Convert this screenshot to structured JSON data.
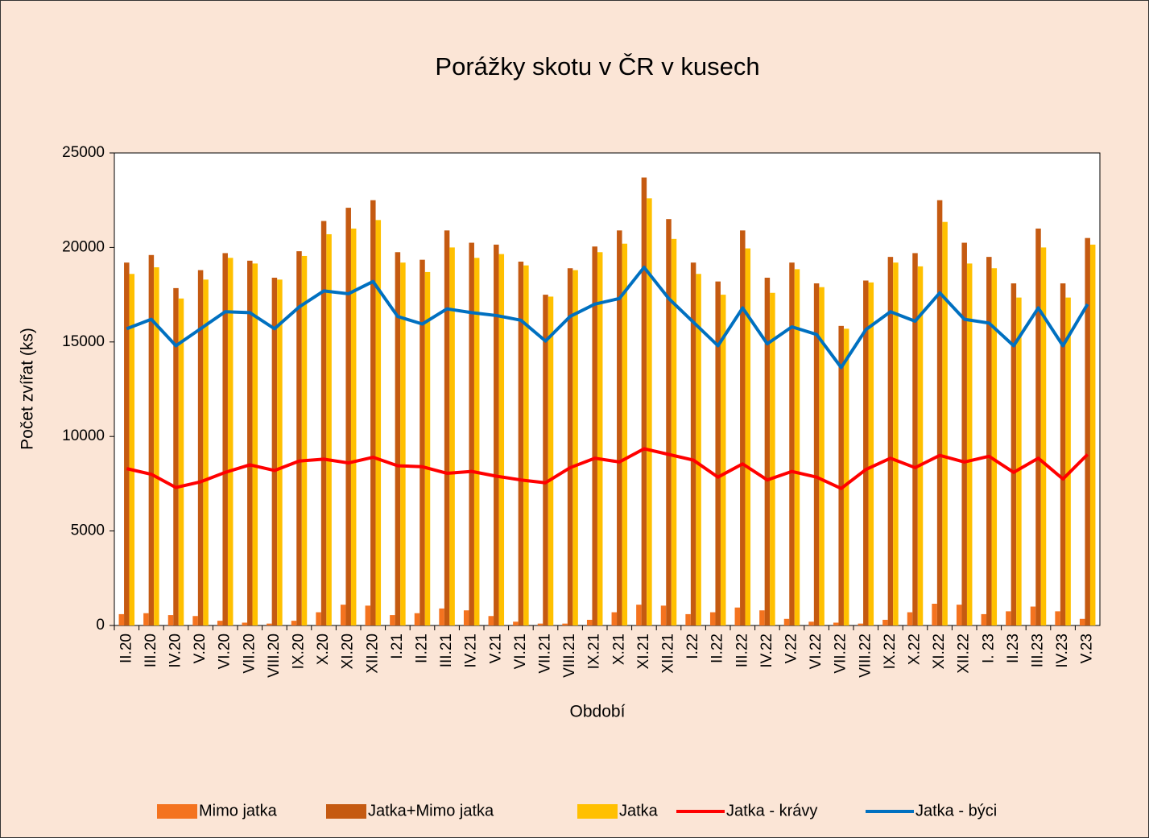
{
  "chart_data": {
    "type": "bar_line",
    "title": "Porážky skotu v ČR v kusech",
    "x_label": "Období",
    "y_label": "Počet zvířat (ks)",
    "categories": [
      "II.20",
      "III.20",
      "IV.20",
      "V.20",
      "VI.20",
      "VII.20",
      "VIII.20",
      "IX.20",
      "X.20",
      "XI.20",
      "XII.20",
      "I.21",
      "II.21",
      "III.21",
      "IV.21",
      "V.21",
      "VI.21",
      "VII.21",
      "VIII.21",
      "IX.21",
      "X.21",
      "XI.21",
      "XII.21",
      "I.22",
      "II.22",
      "III.22",
      "IV.22",
      "V.22",
      "VI.22",
      "VII.22",
      "VIII.22",
      "IX.22",
      "X.22",
      "XI.22",
      "XII.22",
      "I. 23",
      "II.23",
      "III.23",
      "IV.23",
      "V.23"
    ],
    "ylim": [
      0,
      25000
    ],
    "yticks": [
      0,
      5000,
      10000,
      15000,
      20000,
      25000
    ],
    "series": [
      {
        "name": "Mimo jatka",
        "kind": "bar",
        "color": "#f4731f",
        "values": [
          600,
          650,
          550,
          500,
          250,
          150,
          100,
          250,
          700,
          1100,
          1050,
          550,
          650,
          900,
          800,
          500,
          200,
          100,
          100,
          300,
          700,
          1100,
          1050,
          600,
          700,
          950,
          800,
          350,
          200,
          150,
          100,
          300,
          700,
          1150,
          1100,
          600,
          750,
          1000,
          750,
          350
        ]
      },
      {
        "name": "Jatka+Mimo jatka",
        "kind": "bar",
        "color": "#c55a11",
        "values": [
          19200,
          19600,
          17850,
          18800,
          19700,
          19300,
          18400,
          19800,
          21400,
          22100,
          22500,
          19750,
          19350,
          20900,
          20250,
          20150,
          19250,
          17500,
          18900,
          20050,
          20900,
          23700,
          21500,
          19200,
          18200,
          20900,
          18400,
          19200,
          18100,
          15850,
          18250,
          19500,
          19700,
          22500,
          20250,
          19500,
          18100,
          21000,
          18100,
          20500
        ]
      },
      {
        "name": "Jatka",
        "kind": "bar",
        "color": "#ffc000",
        "values": [
          18600,
          18950,
          17300,
          18300,
          19450,
          19150,
          18300,
          19550,
          20700,
          21000,
          21450,
          19200,
          18700,
          20000,
          19450,
          19650,
          19050,
          17400,
          18800,
          19750,
          20200,
          22600,
          20450,
          18600,
          17500,
          19950,
          17600,
          18850,
          17900,
          15700,
          18150,
          19200,
          19000,
          21350,
          19150,
          18900,
          17350,
          20000,
          17350,
          20150
        ]
      },
      {
        "name": "Jatka - krávy",
        "kind": "line",
        "color": "#ff0000",
        "values": [
          8300,
          8000,
          7300,
          7600,
          8100,
          8500,
          8200,
          8700,
          8800,
          8600,
          8900,
          8450,
          8400,
          8050,
          8150,
          7900,
          7700,
          7550,
          8350,
          8850,
          8650,
          9350,
          9050,
          8750,
          7850,
          8550,
          7700,
          8150,
          7850,
          7250,
          8250,
          8850,
          8350,
          9000,
          8650,
          8950,
          8100,
          8850,
          7750,
          9050
        ]
      },
      {
        "name": "Jatka - býci",
        "kind": "line",
        "color": "#0070c0",
        "values": [
          15700,
          16200,
          14800,
          15700,
          16600,
          16550,
          15700,
          16850,
          17700,
          17550,
          18200,
          16350,
          15950,
          16750,
          16550,
          16400,
          16150,
          15050,
          16350,
          17000,
          17300,
          18950,
          17300,
          16050,
          14800,
          16800,
          14900,
          15800,
          15400,
          13650,
          15650,
          16600,
          16100,
          17600,
          16200,
          16000,
          14800,
          16800,
          14800,
          17000
        ]
      }
    ]
  }
}
